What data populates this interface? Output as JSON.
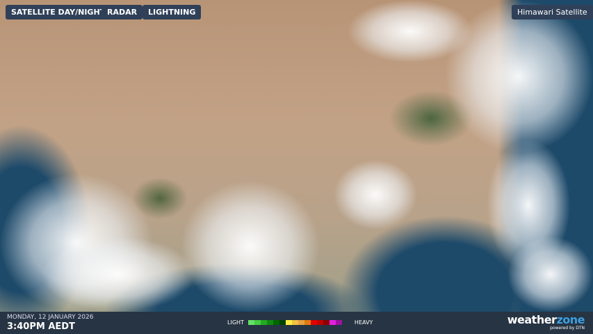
{
  "tabs": [
    {
      "label": "SATELLITE DAY/NIGHT"
    },
    {
      "label": "RADAR"
    },
    {
      "label": "LIGHTNING"
    }
  ],
  "source_label": "Himawari Satellite",
  "footer": {
    "date": "MONDAY, 12 JANUARY 2026",
    "time": "3:40PM AEDT"
  },
  "legend": {
    "light": "LIGHT",
    "heavy": "HEAVY",
    "colors": [
      "#66e066",
      "#44cc44",
      "#22aa22",
      "#118811",
      "#006600",
      "#004400",
      "#ffee44",
      "#f0c040",
      "#e8a040",
      "#e07a10",
      "#e00000",
      "#c00000",
      "#900000",
      "#e020e0",
      "#a010a0"
    ]
  },
  "brand": {
    "name_a": "weather",
    "name_b": "zone",
    "tagline": "powered by DTN",
    "accent": "#3aa0e0"
  }
}
